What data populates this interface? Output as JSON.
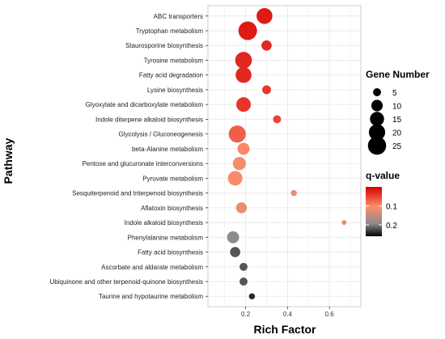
{
  "chart_data": {
    "type": "scatter",
    "xlabel": "Rich Factor",
    "ylabel": "Pathway",
    "xlim": [
      0.02,
      0.75
    ],
    "x_ticks": [
      0.2,
      0.4,
      0.6
    ],
    "x_tick_labels": [
      "0.2",
      "0.4",
      "0.6"
    ],
    "grid": true,
    "categories": [
      "ABC transporters",
      "Tryptophan metabolism",
      "Staurosporine biosynthesis",
      "Tyrosine metabolism",
      "Fatty acid degradation",
      "Lysine biosynthesis",
      "Glyoxylate and dicarboxylate metabolism",
      "Indole diterpene alkaloid biosynthesis",
      "Glycolysis / Gluconeogenesis",
      "beta-Alanine metabolism",
      "Pentose and glucuronate interconversions",
      "Pyruvate metabolism",
      "Sesquiterpenoid and triterpenoid biosynthesis",
      "Aflatoxin biosynthesis",
      "Indole alkaloid biosynthesis",
      "Phenylalanine metabolism",
      "Fatty acid biosynthesis",
      "Ascorbate and aldarate metabolism",
      "Ubiquinone and other terpenoid-quinone biosynthesis",
      "Taurine and hypotaurine metabolism"
    ],
    "points": [
      {
        "pathway": "ABC transporters",
        "rich_factor": 0.29,
        "gene_number": 19,
        "q_value": 0.02
      },
      {
        "pathway": "Tryptophan metabolism",
        "rich_factor": 0.21,
        "gene_number": 26,
        "q_value": 0.02
      },
      {
        "pathway": "Staurosporine biosynthesis",
        "rich_factor": 0.3,
        "gene_number": 8,
        "q_value": 0.03
      },
      {
        "pathway": "Tyrosine metabolism",
        "rich_factor": 0.19,
        "gene_number": 21,
        "q_value": 0.03
      },
      {
        "pathway": "Fatty acid degradation",
        "rich_factor": 0.19,
        "gene_number": 19,
        "q_value": 0.03
      },
      {
        "pathway": "Lysine biosynthesis",
        "rich_factor": 0.3,
        "gene_number": 6,
        "q_value": 0.04
      },
      {
        "pathway": "Glyoxylate and dicarboxylate metabolism",
        "rich_factor": 0.19,
        "gene_number": 16,
        "q_value": 0.04
      },
      {
        "pathway": "Indole diterpene alkaloid biosynthesis",
        "rich_factor": 0.35,
        "gene_number": 5,
        "q_value": 0.05
      },
      {
        "pathway": "Glycolysis / Gluconeogenesis",
        "rich_factor": 0.16,
        "gene_number": 22,
        "q_value": 0.07
      },
      {
        "pathway": "beta-Alanine metabolism",
        "rich_factor": 0.19,
        "gene_number": 11,
        "q_value": 0.1
      },
      {
        "pathway": "Pentose and glucuronate interconversions",
        "rich_factor": 0.17,
        "gene_number": 13,
        "q_value": 0.11
      },
      {
        "pathway": "Pyruvate metabolism",
        "rich_factor": 0.15,
        "gene_number": 16,
        "q_value": 0.11
      },
      {
        "pathway": "Sesquiterpenoid and triterpenoid biosynthesis",
        "rich_factor": 0.43,
        "gene_number": 3,
        "q_value": 0.12
      },
      {
        "pathway": "Aflatoxin biosynthesis",
        "rich_factor": 0.18,
        "gene_number": 9,
        "q_value": 0.12
      },
      {
        "pathway": "Indole alkaloid biosynthesis",
        "rich_factor": 0.67,
        "gene_number": 2,
        "q_value": 0.12
      },
      {
        "pathway": "Phenylalanine metabolism",
        "rich_factor": 0.14,
        "gene_number": 11,
        "q_value": 0.19
      },
      {
        "pathway": "Fatty acid biosynthesis",
        "rich_factor": 0.15,
        "gene_number": 8,
        "q_value": 0.22
      },
      {
        "pathway": "Ascorbate and aldarate metabolism",
        "rich_factor": 0.19,
        "gene_number": 5,
        "q_value": 0.22
      },
      {
        "pathway": "Ubiquinone and other terpenoid-quinone biosynthesis",
        "rich_factor": 0.19,
        "gene_number": 5,
        "q_value": 0.22
      },
      {
        "pathway": "Taurine and hypotaurine metabolism",
        "rich_factor": 0.23,
        "gene_number": 3,
        "q_value": 0.24
      }
    ],
    "size_legend": {
      "title": "Gene Number",
      "values": [
        5,
        10,
        15,
        20,
        25
      ],
      "labels": [
        "5",
        "10",
        "15",
        "20",
        "25"
      ]
    },
    "color_legend": {
      "title": "q-value",
      "range": [
        0.0,
        0.26
      ],
      "ticks": [
        0.1,
        0.2
      ],
      "tick_labels": [
        "0.1",
        "0.2"
      ],
      "colors": {
        "low": "#d40000",
        "mid": "#ff8c6a",
        "high_mid": "#8a8a8a",
        "high": "#000000"
      }
    },
    "panel_background": "#ffffff",
    "grid_color": "#ebebeb",
    "panel_border": "#cccccc"
  }
}
